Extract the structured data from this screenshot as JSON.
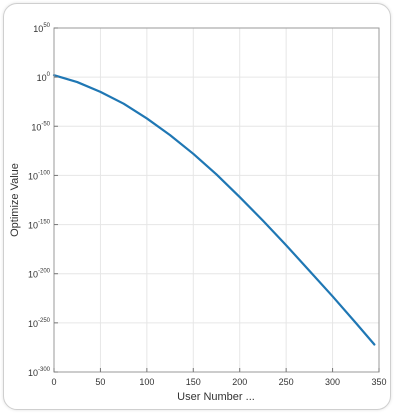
{
  "chart_data": {
    "type": "line",
    "title": "",
    "xlabel": "User Number ...",
    "ylabel": "Optimize Value",
    "xlim": [
      0,
      350
    ],
    "ylim_log10": [
      -300,
      50
    ],
    "y_scale": "log",
    "grid": true,
    "x_ticks": [
      0,
      50,
      100,
      150,
      200,
      250,
      300,
      350
    ],
    "x_tick_labels": [
      "0",
      "50",
      "100",
      "150",
      "200",
      "250",
      "300",
      "350"
    ],
    "y_ticks_log10": [
      50,
      0,
      -50,
      -100,
      -150,
      -200,
      -250,
      -300
    ],
    "y_tick_labels": [
      {
        "base": "10",
        "exp": "50"
      },
      {
        "base": "10",
        "exp": "0"
      },
      {
        "base": "10",
        "exp": "-50"
      },
      {
        "base": "10",
        "exp": "-100"
      },
      {
        "base": "10",
        "exp": "-150"
      },
      {
        "base": "10",
        "exp": "-200"
      },
      {
        "base": "10",
        "exp": "-250"
      },
      {
        "base": "10",
        "exp": "-300"
      }
    ],
    "series": [
      {
        "color": "#1f77b4",
        "x": [
          0,
          25,
          50,
          75,
          100,
          125,
          150,
          175,
          200,
          225,
          250,
          275,
          300,
          325,
          345
        ],
        "y_log10": [
          2,
          -5,
          -15,
          -27,
          -42,
          -59,
          -78,
          -99,
          -122,
          -146,
          -171,
          -197,
          -223,
          -250,
          -272
        ]
      }
    ]
  }
}
